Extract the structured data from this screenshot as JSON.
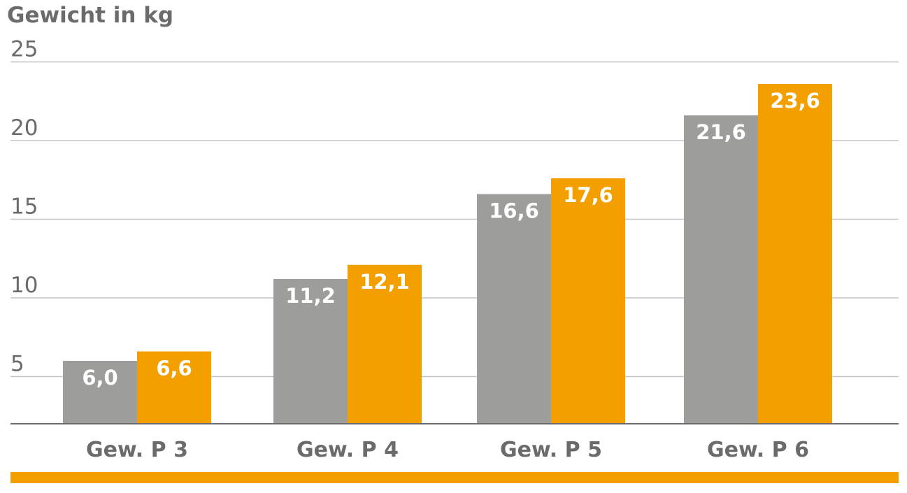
{
  "chart_data": {
    "type": "bar",
    "title": "",
    "ylabel": "Gewicht in kg",
    "xlabel": "",
    "categories": [
      "Gew. P 3",
      "Gew. P 4",
      "Gew. P 5",
      "Gew. P 6"
    ],
    "series": [
      {
        "color": "#9d9d9c",
        "values": [
          6.0,
          11.2,
          16.6,
          21.6
        ],
        "labels": [
          "6,0",
          "11,2",
          "16,6",
          "21,6"
        ]
      },
      {
        "color": "#f39f00",
        "values": [
          6.6,
          12.1,
          17.6,
          23.6
        ],
        "labels": [
          "6,6",
          "12,1",
          "17,6",
          "23,6"
        ]
      }
    ],
    "yticks": [
      5,
      10,
      15,
      20,
      25
    ],
    "ytick_labels": [
      "5",
      "10",
      "15",
      "20",
      "25"
    ],
    "ylim": [
      2,
      25
    ],
    "grid": true,
    "legend": "none",
    "accent_color": "#f39f00"
  }
}
